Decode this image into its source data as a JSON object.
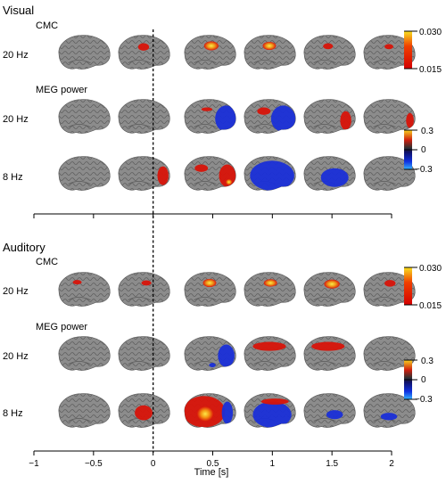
{
  "sections": [
    {
      "title": "Visual",
      "cmc_label": "CMC",
      "meg_label": "MEG power",
      "rows": [
        {
          "freq": "20 Hz",
          "type": "cmc",
          "blobs": [
            [],
            [
              [
                0.5,
                0.35,
                0.1,
                0.1,
                "red"
              ]
            ],
            [
              [
                0.53,
                0.32,
                0.13,
                0.12,
                "yellow"
              ]
            ],
            [
              [
                0.5,
                0.32,
                0.12,
                0.11,
                "yellow"
              ]
            ],
            [
              [
                0.48,
                0.33,
                0.09,
                0.08,
                "red"
              ]
            ],
            [
              [
                0.5,
                0.34,
                0.08,
                0.07,
                "red"
              ]
            ]
          ]
        },
        {
          "freq": "20 Hz",
          "type": "meg",
          "blobs": [
            [],
            [],
            [
              [
                0.8,
                0.55,
                0.2,
                0.35,
                "blue"
              ],
              [
                0.45,
                0.3,
                0.1,
                0.05,
                "red"
              ]
            ],
            [
              [
                0.75,
                0.55,
                0.22,
                0.35,
                "blue"
              ],
              [
                0.4,
                0.35,
                0.12,
                0.1,
                "red"
              ]
            ],
            [
              [
                0.8,
                0.6,
                0.1,
                0.25,
                "red"
              ]
            ],
            [
              [
                0.88,
                0.6,
                0.07,
                0.2,
                "red"
              ]
            ]
          ]
        },
        {
          "freq": "8 Hz",
          "type": "meg",
          "blobs": [
            [],
            [
              [
                0.85,
                0.55,
                0.1,
                0.25,
                "red"
              ]
            ],
            [
              [
                0.82,
                0.55,
                0.15,
                0.3,
                "red"
              ],
              [
                0.35,
                0.35,
                0.12,
                0.1,
                "red"
              ],
              [
                0.85,
                0.72,
                0.06,
                0.08,
                "yellow"
              ]
            ],
            [
              [
                0.55,
                0.55,
                0.4,
                0.4,
                "blue"
              ]
            ],
            [
              [
                0.6,
                0.6,
                0.25,
                0.25,
                "blue"
              ]
            ],
            []
          ]
        }
      ],
      "colorbars": [
        {
          "top": "0.030",
          "bottom": "0.015",
          "type": "cmc"
        },
        {
          "top": "0.3",
          "mid": "0",
          "bottom": "−0.3",
          "type": "meg"
        }
      ]
    },
    {
      "title": "Auditory",
      "cmc_label": "CMC",
      "meg_label": "MEG power",
      "rows": [
        {
          "freq": "20 Hz",
          "type": "cmc",
          "blobs": [
            [
              [
                0.38,
                0.3,
                0.08,
                0.06,
                "red"
              ]
            ],
            [
              [
                0.55,
                0.32,
                0.09,
                0.07,
                "red"
              ]
            ],
            [
              [
                0.5,
                0.32,
                0.12,
                0.11,
                "yellow"
              ]
            ],
            [
              [
                0.52,
                0.32,
                0.12,
                0.1,
                "yellow"
              ]
            ],
            [
              [
                0.55,
                0.35,
                0.14,
                0.12,
                "yellow"
              ]
            ],
            [
              [
                0.52,
                0.33,
                0.1,
                0.09,
                "red"
              ]
            ]
          ]
        },
        {
          "freq": "20 Hz",
          "type": "meg",
          "blobs": [
            [],
            [],
            [
              [
                0.8,
                0.55,
                0.15,
                0.3,
                "blue"
              ],
              [
                0.55,
                0.8,
                0.06,
                0.06,
                "blue"
              ]
            ],
            [
              [
                0.5,
                0.3,
                0.3,
                0.12,
                "red"
              ]
            ],
            [
              [
                0.48,
                0.3,
                0.3,
                0.12,
                "red"
              ]
            ],
            []
          ]
        },
        {
          "freq": "8 Hz",
          "type": "meg",
          "blobs": [
            [],
            [
              [
                0.5,
                0.55,
                0.16,
                0.2,
                "red"
              ]
            ],
            [
              [
                0.4,
                0.52,
                0.38,
                0.42,
                "red"
              ],
              [
                0.42,
                0.58,
                0.15,
                0.2,
                "yellow"
              ],
              [
                0.82,
                0.55,
                0.1,
                0.3,
                "blue"
              ]
            ],
            [
              [
                0.55,
                0.6,
                0.35,
                0.35,
                "blue"
              ],
              [
                0.6,
                0.25,
                0.25,
                0.08,
                "red"
              ]
            ],
            [
              [
                0.6,
                0.6,
                0.15,
                0.12,
                "blue"
              ]
            ],
            [
              [
                0.5,
                0.65,
                0.15,
                0.1,
                "blue"
              ]
            ]
          ]
        }
      ],
      "colorbars": [
        {
          "top": "0.030",
          "bottom": "0.015",
          "type": "cmc"
        },
        {
          "top": "0.3",
          "mid": "0",
          "bottom": "−0.3",
          "type": "meg"
        }
      ]
    }
  ],
  "axis": {
    "ticks": [
      "−1",
      "−0.5",
      "0",
      "0.5",
      "1",
      "1.5",
      "2"
    ],
    "tick_values": [
      -1,
      -0.5,
      0,
      0.5,
      1,
      1.5,
      2
    ],
    "xlim": [
      -1,
      2
    ],
    "xlabel": "Time [s]",
    "stimulus_onset": 0
  },
  "colors": {
    "brain": "#8a8a8a",
    "red": "#d8140a",
    "yellow": "#f5d21a",
    "blue": "#1a2fd8"
  }
}
